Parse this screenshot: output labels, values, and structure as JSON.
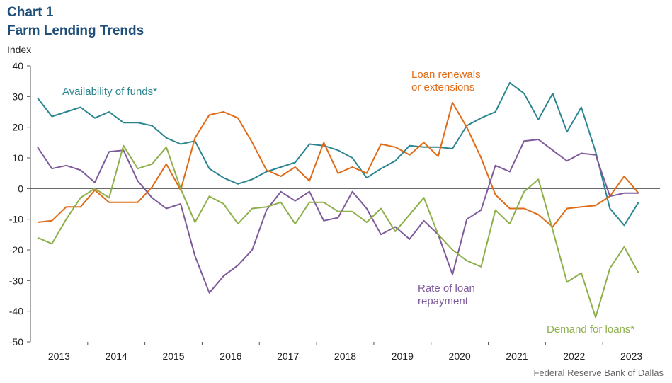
{
  "chart_data": {
    "type": "line",
    "title": "Chart 1",
    "subtitle": "Farm Lending Trends",
    "ylabel": "Index",
    "ylim": [
      -50,
      40
    ],
    "yticks": [
      40,
      30,
      20,
      10,
      0,
      -10,
      -20,
      -30,
      -40,
      -50
    ],
    "xlim": [
      2012.5,
      2023.5
    ],
    "year_labels": [
      "2013",
      "2014",
      "2015",
      "2016",
      "2017",
      "2018",
      "2019",
      "2020",
      "2021",
      "2022",
      "2023"
    ],
    "source": "Federal Reserve Bank of Dallas",
    "x": [
      2012.625,
      2012.875,
      2013.125,
      2013.375,
      2013.625,
      2013.875,
      2014.125,
      2014.375,
      2014.625,
      2014.875,
      2015.125,
      2015.375,
      2015.625,
      2015.875,
      2016.125,
      2016.375,
      2016.625,
      2016.875,
      2017.125,
      2017.375,
      2017.625,
      2017.875,
      2018.125,
      2018.375,
      2018.625,
      2018.875,
      2019.125,
      2019.375,
      2019.625,
      2019.875,
      2020.125,
      2020.375,
      2020.625,
      2020.875,
      2021.125,
      2021.375,
      2021.625,
      2021.875,
      2022.125,
      2022.375,
      2022.625,
      2022.875,
      2023.125,
      2023.375
    ],
    "series": [
      {
        "name": "Availability of funds*",
        "color": "#2b8591",
        "values": [
          29.5,
          23.5,
          25,
          26.5,
          23,
          25,
          21.5,
          21.5,
          20.5,
          16.5,
          14.5,
          15.5,
          6.5,
          3.5,
          1.5,
          3,
          5.5,
          7,
          8.5,
          14.5,
          14,
          12.5,
          10,
          3.5,
          6.5,
          9,
          14,
          13.5,
          13.5,
          13,
          20.5,
          23,
          25,
          34.5,
          31,
          22.5,
          31,
          18.5,
          26.5,
          12,
          -6.5,
          -12,
          -4.5,
          null
        ]
      },
      {
        "name": "Loan renewals or extensions",
        "color": "#e06b17",
        "values": [
          -11,
          -10.5,
          -6,
          -6,
          -0.5,
          -4.5,
          -4.5,
          -4.5,
          0.5,
          8,
          -0.5,
          16.5,
          24,
          25,
          23,
          15,
          6,
          4,
          7,
          2.5,
          15,
          5,
          7,
          5,
          14.5,
          13.5,
          11,
          15,
          10.5,
          28,
          20,
          10,
          -2,
          -6.5,
          -6.5,
          -8.5,
          -12.5,
          -6.5,
          -6,
          -5.5,
          -2.5,
          4,
          -1.5,
          null
        ]
      },
      {
        "name": "Rate of loan repayment",
        "color": "#7e5a9b",
        "values": [
          13.5,
          6.5,
          7.5,
          6,
          2,
          12,
          12.5,
          2.5,
          -3,
          -6.5,
          -5,
          -22,
          -34,
          -28.5,
          -25,
          -20,
          -7,
          -1,
          -4,
          -1,
          -10.5,
          -9.5,
          -1,
          -6.5,
          -15,
          -12.5,
          -16.5,
          -10.5,
          -15,
          -28,
          -10,
          -7,
          7.5,
          5.5,
          15.5,
          16,
          12.5,
          9,
          11.5,
          11,
          -2.5,
          -1.5,
          -1.5,
          null
        ]
      },
      {
        "name": "Demand for loans*",
        "color": "#8db04a",
        "values": [
          -16,
          -18,
          -10,
          -3,
          0,
          -3,
          14,
          6.5,
          8,
          13.5,
          0,
          -11,
          -2.5,
          -5,
          -11.5,
          -6.5,
          -6,
          -4.5,
          -11.5,
          -4.5,
          -4.5,
          -7.5,
          -7.5,
          -11,
          -6.5,
          -14,
          -8.5,
          -3,
          -15,
          -20,
          -23.5,
          -25.5,
          -7,
          -11.5,
          -1,
          3,
          -13.5,
          -30.5,
          -27.5,
          -42,
          -26,
          -19,
          -27.5,
          null
        ]
      }
    ],
    "annotations": [
      {
        "series": 0,
        "lines": [
          "Availability of funds*"
        ]
      },
      {
        "series": 1,
        "lines": [
          "Loan renewals",
          "or extensions"
        ]
      },
      {
        "series": 2,
        "lines": [
          "Rate of loan",
          "repayment"
        ]
      },
      {
        "series": 3,
        "lines": [
          "Demand for loans*"
        ]
      }
    ]
  }
}
